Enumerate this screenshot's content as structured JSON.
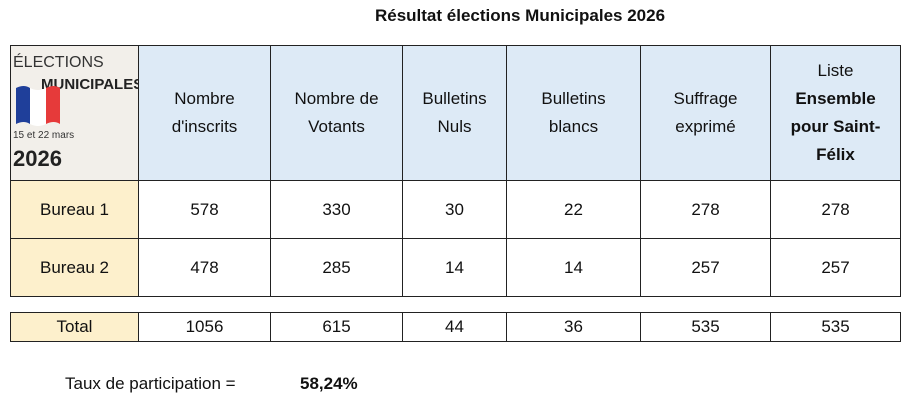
{
  "title": "Résultat élections Municipales 2026",
  "logo": {
    "line1": "ÉLECTIONS",
    "line2": "MUNICIPALES",
    "dates": "15 et 22 mars",
    "year": "2026"
  },
  "table": {
    "columns": [
      "Nombre d'inscrits",
      "Nombre de Votants",
      "Bulletins Nuls",
      "Bulletins blancs",
      "Suffrage exprimé",
      {
        "prefix": "Liste",
        "emphasis": "Ensemble pour Saint-Félix"
      }
    ],
    "rows": [
      [
        "Bureau 1",
        578,
        330,
        30,
        22,
        278,
        278
      ],
      [
        "Bureau 2",
        478,
        285,
        14,
        14,
        257,
        257
      ]
    ],
    "total": [
      "Total",
      1056,
      615,
      44,
      36,
      535,
      535
    ]
  },
  "footer": {
    "label": "Taux de participation =",
    "value": "58,24%"
  }
}
